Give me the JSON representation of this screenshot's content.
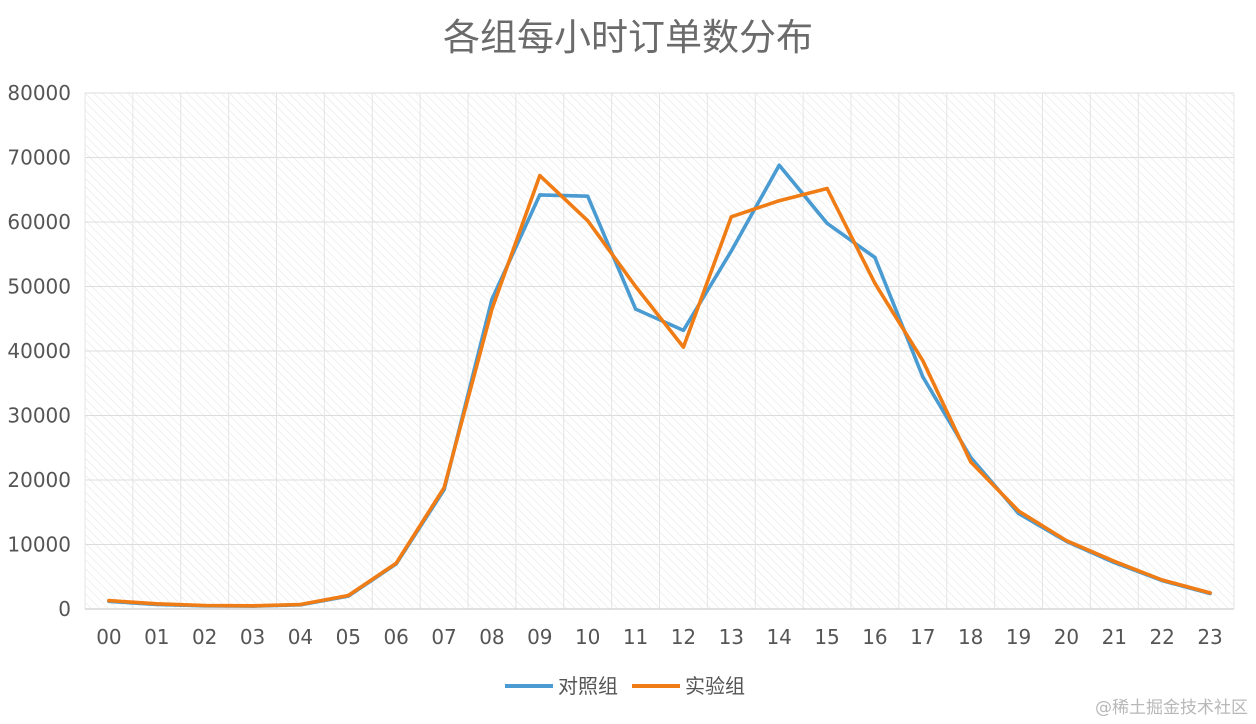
{
  "chart_data": {
    "type": "line",
    "title": "各组每小时订单数分布",
    "xlabel": "",
    "ylabel": "",
    "categories": [
      "00",
      "01",
      "02",
      "03",
      "04",
      "05",
      "06",
      "07",
      "08",
      "09",
      "10",
      "11",
      "12",
      "13",
      "14",
      "15",
      "16",
      "17",
      "18",
      "19",
      "20",
      "21",
      "22",
      "23"
    ],
    "ylim": [
      0,
      80000
    ],
    "yticks": [
      0,
      10000,
      20000,
      30000,
      40000,
      50000,
      60000,
      70000,
      80000
    ],
    "grid": true,
    "legend_position": "bottom",
    "series": [
      {
        "name": "对照组",
        "color": "#4a9bd1",
        "values": [
          1200,
          700,
          500,
          450,
          650,
          2000,
          7000,
          18500,
          48000,
          64200,
          64000,
          46500,
          43200,
          55500,
          68800,
          59800,
          54500,
          36000,
          23500,
          14800,
          10500,
          7200,
          4400,
          2400
        ]
      },
      {
        "name": "实验组",
        "color": "#f07c16",
        "values": [
          1300,
          800,
          550,
          500,
          700,
          2100,
          7100,
          18800,
          46500,
          67200,
          60200,
          50000,
          40600,
          60800,
          63300,
          65200,
          50500,
          38500,
          22800,
          15200,
          10600,
          7400,
          4500,
          2500
        ]
      }
    ]
  },
  "watermark": "@稀土掘金技术社区"
}
